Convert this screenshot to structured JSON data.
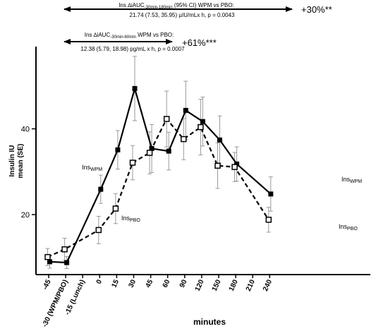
{
  "chart_data": {
    "type": "line",
    "xlabel": "minutes",
    "ylabel_line1": "Insulin IU",
    "ylabel_line2": "mean (SE)",
    "yticks": [
      20,
      40
    ],
    "ylim": [
      5,
      58
    ],
    "x_categories": [
      "-45",
      "-30 (WPM/PBO)",
      "-15 (Lunch)",
      "0",
      "15",
      "30",
      "45",
      "60",
      "90",
      "120",
      "150",
      "180",
      "210",
      "240"
    ],
    "grid": false,
    "series": [
      {
        "name": "InsWPM",
        "label_main": "Ins",
        "label_sub": "WPM",
        "marker": "filled-square",
        "line": "solid",
        "points": [
          {
            "x": "-45",
            "y": 9.0,
            "err": 1.5
          },
          {
            "x": "-30 (WPM/PBO)",
            "y": 8.8,
            "err": 1.4
          },
          {
            "x": "0",
            "y": 25.9,
            "err": 3.3
          },
          {
            "x": "15",
            "y": 35.1,
            "err": 4.5
          },
          {
            "x": "30",
            "y": 49.4,
            "err": 7.5
          },
          {
            "x": "45",
            "y": 35.4,
            "err": 5.6
          },
          {
            "x": "60",
            "y": 34.8,
            "err": 4.4
          },
          {
            "x": "90",
            "y": 44.3,
            "err": 6.8
          },
          {
            "x": "120",
            "y": 41.7,
            "err": 5.7
          },
          {
            "x": "150",
            "y": 37.4,
            "err": 5.6
          },
          {
            "x": "180",
            "y": 31.8,
            "err": 4.0
          },
          {
            "x": "240",
            "y": 24.8,
            "err": 4.0
          }
        ]
      },
      {
        "name": "InsPBO",
        "label_main": "Ins",
        "label_sub": "PBO",
        "marker": "open-square",
        "line": "dashed",
        "points": [
          {
            "x": "-45",
            "y": 10.1,
            "err": 2.0
          },
          {
            "x": "-30 (WPM/PBO)",
            "y": 11.9,
            "err": 2.6
          },
          {
            "x": "0",
            "y": 16.4,
            "err": 3.2
          },
          {
            "x": "15",
            "y": 21.4,
            "err": 3.5
          },
          {
            "x": "30",
            "y": 32.1,
            "err": 4.0
          },
          {
            "x": "45",
            "y": 34.4,
            "err": 4.9
          },
          {
            "x": "60",
            "y": 42.3,
            "err": 6.5
          },
          {
            "x": "90",
            "y": 37.6,
            "err": 4.8
          },
          {
            "x": "120",
            "y": 40.4,
            "err": 6.5
          },
          {
            "x": "150",
            "y": 31.4,
            "err": 5.3
          },
          {
            "x": "180",
            "y": 31.1,
            "err": 3.4
          },
          {
            "x": "240",
            "y": 18.8,
            "err": 2.9
          }
        ]
      }
    ]
  },
  "annotations": {
    "top": {
      "line1_prefix": "Ins ∆iAUC",
      "line1_sub": "-30min-180min",
      "line1_suffix": " (95% CI) WPM vs  PBO:",
      "line2": "21.74 (7.53, 35.95) µIU/mLx h, p = 0.0043",
      "result": "+30%**"
    },
    "mid": {
      "line1_prefix": "Ins ∆iAUC",
      "line1_sub": "-30min-60min",
      "line1_suffix": " WPM vs  PBO:",
      "line2": "12.38 (5.79, 18.98) pg/mL x h, p = 0.0007",
      "result": "+61%***"
    }
  }
}
